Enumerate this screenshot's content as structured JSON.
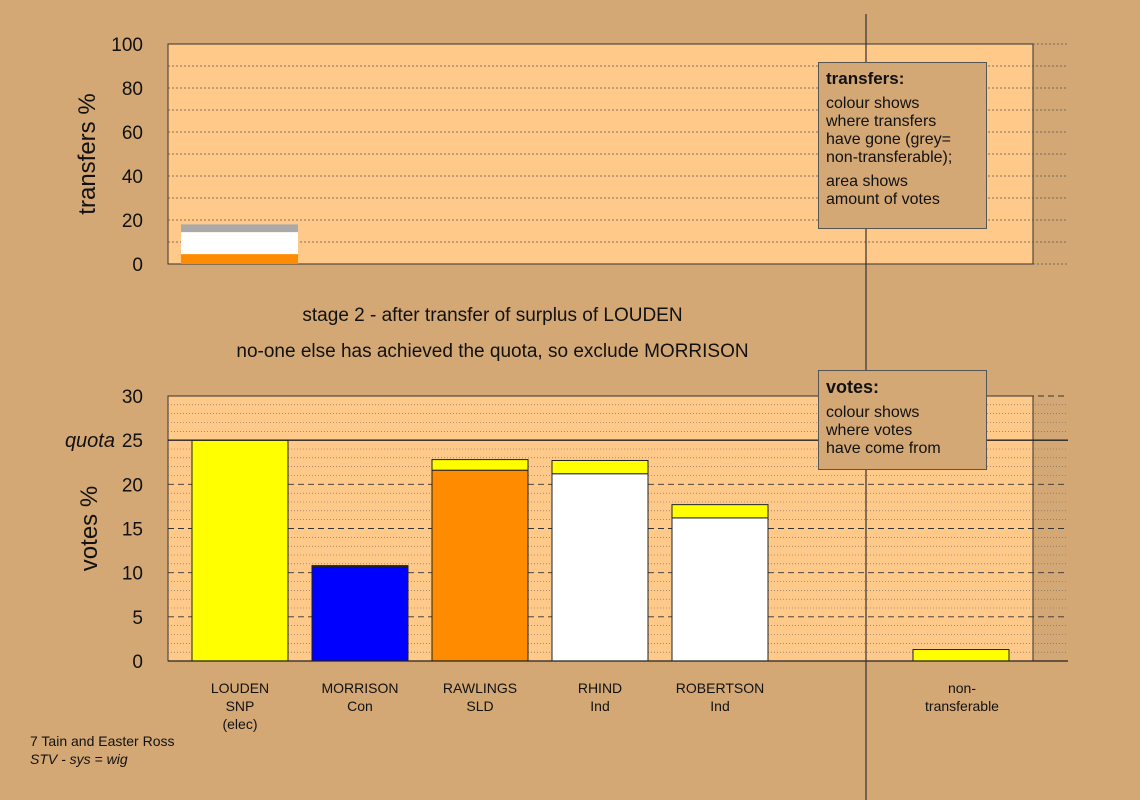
{
  "chart_data": [
    {
      "type": "bar",
      "ylabel": "transfers %",
      "ylim": [
        0,
        100
      ],
      "yticks": [
        0,
        20,
        40,
        60,
        80,
        100
      ],
      "grid": true,
      "transfer_segments": [
        {
          "to": "RAWLINGS",
          "color": "#ff8c00",
          "from": 0,
          "to_value": 4.5
        },
        {
          "to": "RHIND",
          "color": "#ffffff",
          "from": 4.5,
          "to_value": 11.8
        },
        {
          "to": "ROBERTSON",
          "color": "#ffffff",
          "from": 11.8,
          "to_value": 14.5
        },
        {
          "to": "non-transferable",
          "color": "#aaaaaa",
          "from": 14.5,
          "to_value": 18
        }
      ]
    },
    {
      "type": "bar",
      "ylabel": "votes %",
      "ylim": [
        0,
        30
      ],
      "yticks": [
        0,
        5,
        10,
        15,
        20,
        25,
        30
      ],
      "quota": 25,
      "quota_label": "quota",
      "grid": true,
      "categories": [
        {
          "name": "LOUDEN",
          "party": "SNP",
          "note": "(elec)"
        },
        {
          "name": "MORRISON",
          "party": "Con",
          "note": ""
        },
        {
          "name": "RAWLINGS",
          "party": "SLD",
          "note": ""
        },
        {
          "name": "RHIND",
          "party": "Ind",
          "note": ""
        },
        {
          "name": "ROBERTSON",
          "party": "Ind",
          "note": ""
        }
      ],
      "nontransferable_label": [
        "non-",
        "transferable"
      ],
      "stacks": [
        [
          {
            "source": "SNP",
            "color": "#ffff00",
            "value": 25.0
          }
        ],
        [
          {
            "source": "Con",
            "color": "#0000ff",
            "value": 10.7
          },
          {
            "source": "SNP",
            "color": "#ffff00",
            "value": 0.1
          }
        ],
        [
          {
            "source": "SLD",
            "color": "#ff8c00",
            "value": 21.6
          },
          {
            "source": "SNP",
            "color": "#ffff00",
            "value": 1.2
          }
        ],
        [
          {
            "source": "Ind",
            "color": "#ffffff",
            "value": 21.2
          },
          {
            "source": "SNP",
            "color": "#ffff00",
            "value": 1.5
          }
        ],
        [
          {
            "source": "Ind",
            "color": "#ffffff",
            "value": 16.2
          },
          {
            "source": "SNP",
            "color": "#ffff00",
            "value": 1.5
          }
        ]
      ],
      "nontransferable": [
        {
          "source": "SNP",
          "color": "#ffff00",
          "value": 1.3
        }
      ]
    }
  ],
  "captions": {
    "line1": "stage 2 - after transfer of surplus of LOUDEN",
    "line2": "no-one else has achieved the quota, so exclude MORRISON"
  },
  "legend_transfers": {
    "title": "transfers:",
    "lines1": [
      "colour shows",
      "where transfers",
      "have gone (grey=",
      "non-transferable);"
    ],
    "lines2": [
      "area shows",
      "amount of votes"
    ]
  },
  "legend_votes": {
    "title": "votes:",
    "lines": [
      "colour shows",
      "where votes",
      "have come from"
    ]
  },
  "footer": {
    "line1": "7 Tain and Easter Ross",
    "line2": "STV - sys = wig"
  },
  "colors": {
    "background": "#d4a875",
    "plot_area": "#ffc98a",
    "snp": "#ffff00",
    "con": "#0000ff",
    "sld": "#ff8c00",
    "ind": "#ffffff",
    "nontransferable": "#aaaaaa"
  }
}
